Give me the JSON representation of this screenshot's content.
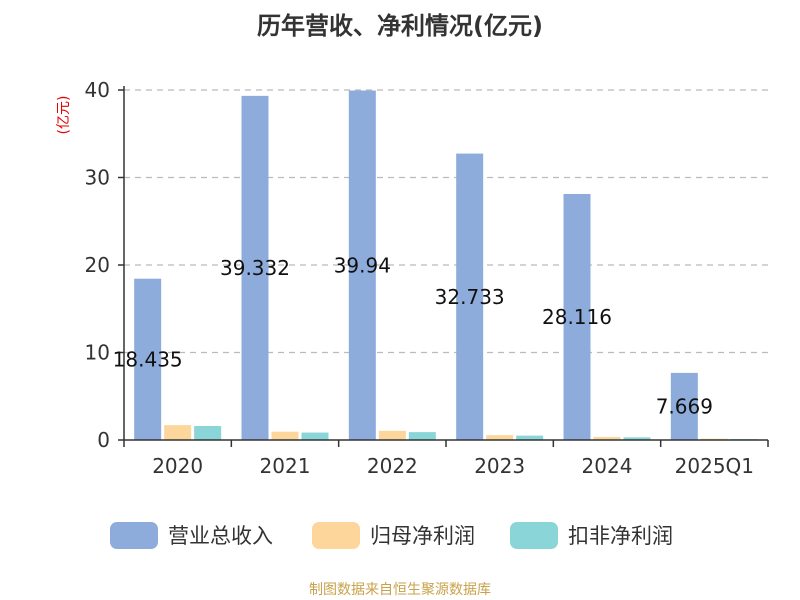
{
  "chart_data": {
    "type": "bar",
    "title": "历年营收、净利情况(亿元)",
    "ylabel": "(亿元)",
    "categories": [
      "2020",
      "2021",
      "2022",
      "2023",
      "2024",
      "2025Q1"
    ],
    "ylim": [
      0,
      40
    ],
    "yticks": [
      0,
      10,
      20,
      30,
      40
    ],
    "grid": true,
    "legend_position": "bottom",
    "series": [
      {
        "name": "营业总收入",
        "color": "#8eacdb",
        "values": [
          18.435,
          39.332,
          39.94,
          32.733,
          28.116,
          7.669
        ],
        "labels": [
          "18.435",
          "39.332",
          "39.94",
          "32.733",
          "28.116",
          "7.669"
        ]
      },
      {
        "name": "归母净利润",
        "color": "#fdd69b",
        "values": [
          1.7,
          0.95,
          1.05,
          0.55,
          0.35,
          0.15
        ]
      },
      {
        "name": "扣非净利润",
        "color": "#8ad5d7",
        "values": [
          1.6,
          0.85,
          0.9,
          0.5,
          0.3,
          0.1
        ]
      }
    ]
  },
  "source_text": "制图数据来自恒生聚源数据库"
}
